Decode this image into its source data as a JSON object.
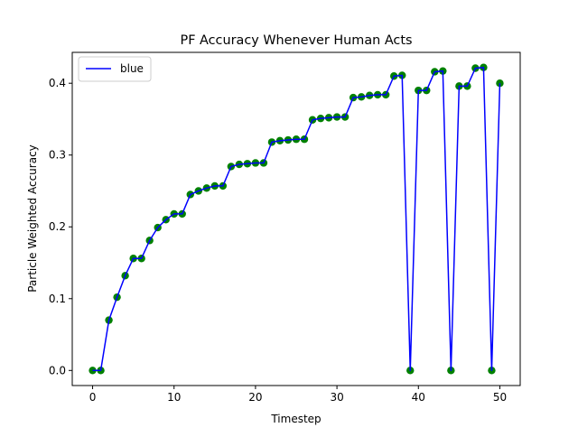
{
  "chart_data": {
    "type": "line",
    "title": "PF Accuracy Whenever Human Acts",
    "xlabel": "Timestep",
    "ylabel": "Particle Weighted Accuracy",
    "xlim": [
      -2.5,
      52.5
    ],
    "ylim": [
      -0.021,
      0.443
    ],
    "x_ticks": [
      0,
      10,
      20,
      30,
      40,
      50
    ],
    "y_ticks": [
      0.0,
      0.1,
      0.2,
      0.3,
      0.4
    ],
    "x_tick_labels": [
      "0",
      "10",
      "20",
      "30",
      "40",
      "50"
    ],
    "y_tick_labels": [
      "0.0",
      "0.1",
      "0.2",
      "0.3",
      "0.4"
    ],
    "grid": false,
    "legend": {
      "position": "top-left",
      "entries": [
        "blue"
      ]
    },
    "series": [
      {
        "name": "blue",
        "line_color": "#0000ff",
        "marker_color": "#008000",
        "x": [
          0,
          1,
          2,
          3,
          4,
          5,
          6,
          7,
          8,
          9,
          10,
          11,
          12,
          13,
          14,
          15,
          16,
          17,
          18,
          19,
          20,
          21,
          22,
          23,
          24,
          25,
          26,
          27,
          28,
          29,
          30,
          31,
          32,
          33,
          34,
          35,
          36,
          37,
          38,
          39,
          40,
          41,
          42,
          43,
          44,
          45,
          46,
          47,
          48,
          49,
          50
        ],
        "y": [
          0.0,
          0.0,
          0.07,
          0.102,
          0.132,
          0.156,
          0.156,
          0.181,
          0.199,
          0.21,
          0.218,
          0.218,
          0.245,
          0.25,
          0.254,
          0.257,
          0.257,
          0.284,
          0.287,
          0.288,
          0.289,
          0.289,
          0.318,
          0.32,
          0.321,
          0.322,
          0.322,
          0.349,
          0.351,
          0.352,
          0.353,
          0.353,
          0.38,
          0.381,
          0.383,
          0.384,
          0.384,
          0.41,
          0.411,
          0.0,
          0.39,
          0.39,
          0.416,
          0.417,
          0.0,
          0.396,
          0.396,
          0.421,
          0.422,
          0.0,
          0.4
        ]
      }
    ]
  }
}
